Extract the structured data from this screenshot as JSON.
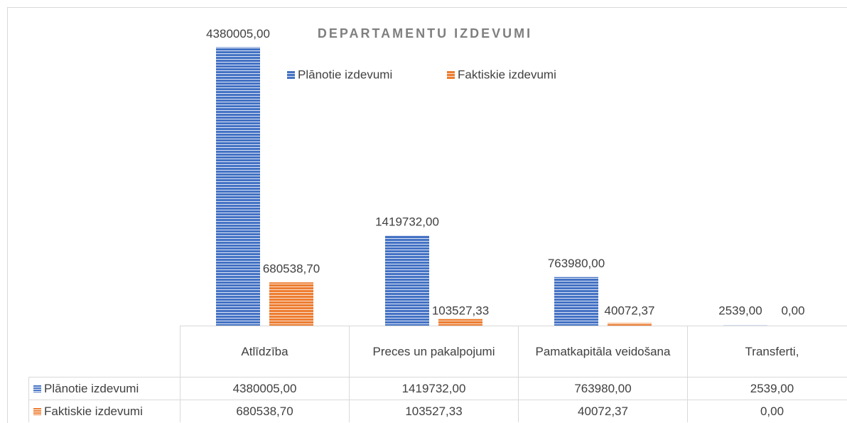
{
  "chart_data": {
    "type": "bar",
    "title": "DEPARTAMENTU IZDEVUMI",
    "categories": [
      "Atlīdzība",
      "Preces un pakalpojumi",
      "Pamatkapitāla veidošana",
      "Transferti,"
    ],
    "series": [
      {
        "name": "Plānotie izdevumi",
        "color": "#4472c4",
        "values": [
          4380005,
          1419732,
          763980,
          2539
        ],
        "value_labels": [
          "4380005,00",
          "1419732,00",
          "763980,00",
          "2539,00"
        ]
      },
      {
        "name": "Faktiskie izdevumi",
        "color": "#ed7d31",
        "values": [
          680538.7,
          103527.33,
          40072.37,
          0
        ],
        "value_labels": [
          "680538,70",
          "103527,33",
          "40072,37",
          "0,00"
        ]
      }
    ],
    "ylim": [
      0,
      5000000
    ],
    "legend": "top",
    "data_table": true
  }
}
